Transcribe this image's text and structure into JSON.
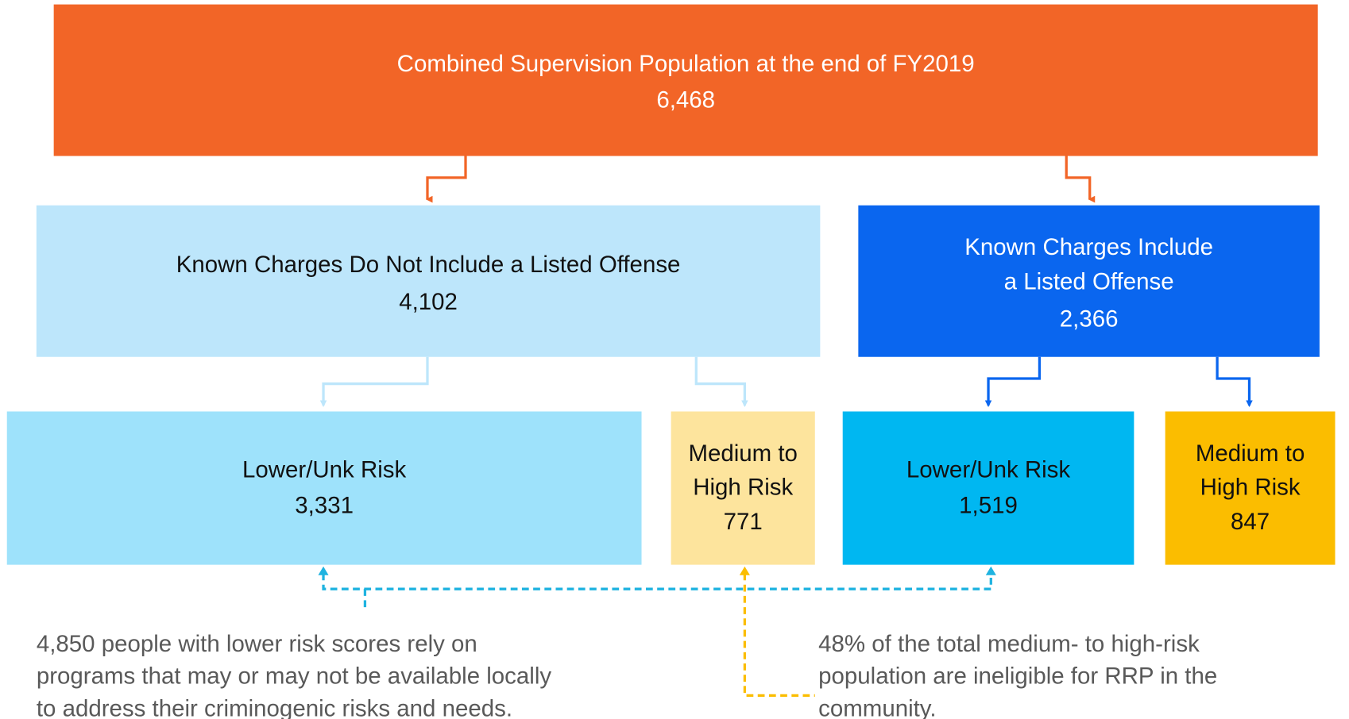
{
  "nodes": [
    {
      "lines": [
        "Combined Supervision Population at the end of FY2019",
        "6,468"
      ]
    },
    {
      "lines": [
        "Known Charges Do Not Include a Listed Offense",
        "4,102"
      ]
    },
    {
      "lines": [
        "Known Charges Include",
        "a Listed Offense",
        "2,366"
      ]
    },
    {
      "lines": [
        "Lower/Unk Risk",
        "3,331"
      ]
    },
    {
      "lines": [
        "Medium to",
        "High Risk",
        "771"
      ]
    },
    {
      "lines": [
        "Lower/Unk Risk",
        "1,519"
      ]
    },
    {
      "lines": [
        "Medium to",
        "High Risk",
        "847"
      ]
    }
  ],
  "notes": [
    {
      "lines": [
        "4,850 people with lower risk scores rely on",
        "programs that may or may not be available locally",
        "to address their criminogenic risks and needs."
      ]
    },
    {
      "lines": [
        "48% of the total medium- to high-risk",
        "population are ineligible for RRP in the",
        "community."
      ]
    }
  ]
}
